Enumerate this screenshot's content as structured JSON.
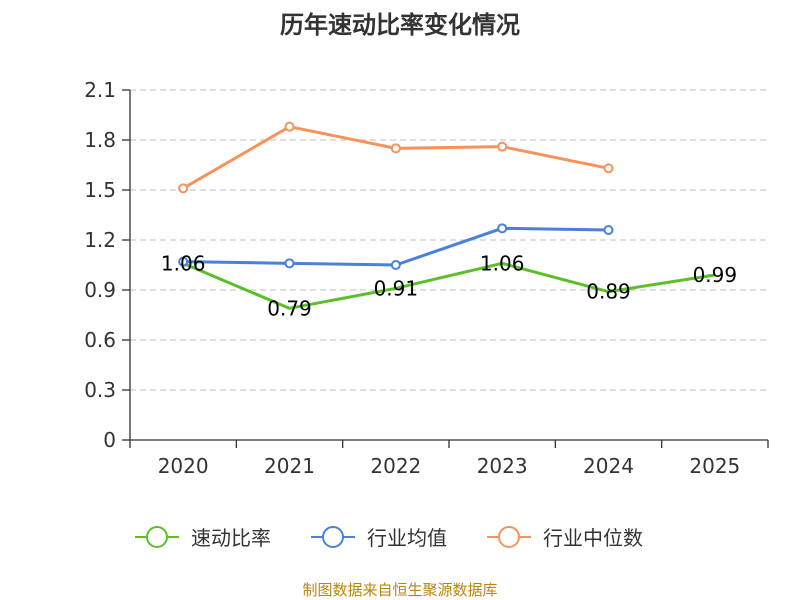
{
  "chart_data": {
    "type": "line",
    "title": "历年速动比率变化情况",
    "categories": [
      "2020",
      "2021",
      "2022",
      "2023",
      "2024",
      "2025"
    ],
    "ylim": [
      0,
      2.1
    ],
    "yticks": [
      "0",
      "0.3",
      "0.6",
      "0.9",
      "1.2",
      "1.5",
      "1.8",
      "2.1"
    ],
    "ytick_values": [
      0,
      0.3,
      0.6,
      0.9,
      1.2,
      1.5,
      1.8,
      2.1
    ],
    "grid": true,
    "legend_position": "bottom",
    "series": [
      {
        "name": "速动比率",
        "color": "#5cbf2a",
        "values": [
          1.06,
          0.79,
          0.91,
          1.06,
          0.89,
          0.99
        ],
        "labels": [
          "1.06",
          "0.79",
          "0.91",
          "1.06",
          "0.89",
          "0.99"
        ],
        "show_labels": true,
        "show_markers": false
      },
      {
        "name": "行业均值",
        "color": "#4a7fdc",
        "values": [
          1.07,
          1.06,
          1.05,
          1.27,
          1.26,
          null
        ],
        "show_labels": false,
        "show_markers": true
      },
      {
        "name": "行业中位数",
        "color": "#f5935a",
        "values": [
          1.51,
          1.88,
          1.75,
          1.76,
          1.63,
          null
        ],
        "show_labels": false,
        "show_markers": true
      }
    ]
  },
  "source": "制图数据来自恒生聚源数据库"
}
